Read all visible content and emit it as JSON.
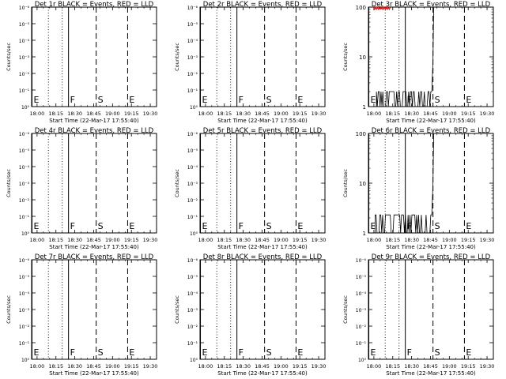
{
  "figure": {
    "tick_labels": [
      "18:00",
      "18:15",
      "18:30",
      "18:45",
      "19:00",
      "19:15",
      "19:30"
    ],
    "x_values": [
      "18:00",
      "18:15",
      "18:30",
      "18:45",
      "19:00",
      "19:15",
      "19:30"
    ],
    "y_tick_labels_pow": [
      "10⁰",
      "10⁻¹",
      "10⁻²",
      "10⁻³",
      "10⁻⁴",
      "10⁻⁵",
      "10⁻⁶"
    ],
    "y_tick_labels_lin": [
      "1",
      "10",
      "100"
    ],
    "colors": {
      "events": "#000000",
      "lld": "#ff0000",
      "axes": "#000000",
      "background": "#ffffff"
    }
  },
  "chart_data": [
    {
      "type": "line",
      "title": "Det 1r BLACK = Events, RED = LLD",
      "xlabel": "Start Time (22-Mar-17 17:55:40)",
      "ylabel": "Counts/sec",
      "y_scale": "power-ticks",
      "xlim": [
        "17:55:40",
        "19:35"
      ],
      "ylim": [
        1e-06,
        1
      ],
      "markers": [
        {
          "label": "E",
          "time": "17:56",
          "style": "solid"
        },
        {
          "label": "F",
          "time": "18:25",
          "style": "solid"
        },
        {
          "label": "S",
          "time": "18:47",
          "style": "dashed"
        },
        {
          "label": "E",
          "time": "19:12",
          "style": "dashed"
        }
      ],
      "dotted_lines": [
        "18:09",
        "18:20"
      ],
      "series": []
    },
    {
      "type": "line",
      "title": "Det 2r BLACK = Events, RED = LLD",
      "xlabel": "Start Time (22-Mar-17 17:55:40)",
      "ylabel": "Counts/sec",
      "y_scale": "power-ticks",
      "xlim": [
        "17:55:40",
        "19:35"
      ],
      "ylim": [
        1e-06,
        1
      ],
      "markers": [
        {
          "label": "E",
          "time": "17:56",
          "style": "solid"
        },
        {
          "label": "F",
          "time": "18:25",
          "style": "solid"
        },
        {
          "label": "S",
          "time": "18:47",
          "style": "dashed"
        },
        {
          "label": "E",
          "time": "19:12",
          "style": "dashed"
        }
      ],
      "dotted_lines": [
        "18:09",
        "18:20"
      ],
      "series": []
    },
    {
      "type": "line",
      "title": "Det 3r BLACK = Events, RED = LLD",
      "xlabel": "Start Time (22-Mar-17 17:55:40)",
      "ylabel": "Counts/sec",
      "y_scale": "log",
      "xlim": [
        "17:55:40",
        "19:35"
      ],
      "ylim": [
        1,
        100
      ],
      "markers": [
        {
          "label": "E",
          "time": "17:56",
          "style": "solid"
        },
        {
          "label": "F",
          "time": "18:25",
          "style": "solid"
        },
        {
          "label": "S",
          "time": "18:47",
          "style": "dashed"
        },
        {
          "label": "E",
          "time": "19:12",
          "style": "dashed"
        }
      ],
      "dotted_lines": [
        "18:09",
        "18:20"
      ],
      "series": [
        {
          "color": "#000000",
          "kind": "events",
          "t_start": "18:02",
          "t_end": "18:46",
          "low": 1,
          "high": 2,
          "spike": 100
        },
        {
          "color": "#ff0000",
          "kind": "lld",
          "t_start": "18:00",
          "t_end": "18:13",
          "level": 95
        }
      ]
    },
    {
      "type": "line",
      "title": "Det 4r BLACK = Events, RED = LLD",
      "xlabel": "Start Time (22-Mar-17 17:55:40)",
      "ylabel": "Counts/sec",
      "y_scale": "power-ticks",
      "xlim": [
        "17:55:40",
        "19:35"
      ],
      "ylim": [
        1e-06,
        1
      ],
      "markers": [
        {
          "label": "E",
          "time": "17:56",
          "style": "solid"
        },
        {
          "label": "F",
          "time": "18:25",
          "style": "solid"
        },
        {
          "label": "S",
          "time": "18:47",
          "style": "dashed"
        },
        {
          "label": "E",
          "time": "19:12",
          "style": "dashed"
        }
      ],
      "dotted_lines": [
        "18:09",
        "18:20"
      ],
      "series": []
    },
    {
      "type": "line",
      "title": "Det 5r BLACK = Events, RED = LLD",
      "xlabel": "Start Time (22-Mar-17 17:55:40)",
      "ylabel": "Counts/sec",
      "y_scale": "power-ticks",
      "xlim": [
        "17:55:40",
        "19:35"
      ],
      "ylim": [
        1e-06,
        1
      ],
      "markers": [
        {
          "label": "E",
          "time": "17:56",
          "style": "solid"
        },
        {
          "label": "F",
          "time": "18:25",
          "style": "solid"
        },
        {
          "label": "S",
          "time": "18:47",
          "style": "dashed"
        },
        {
          "label": "E",
          "time": "19:12",
          "style": "dashed"
        }
      ],
      "dotted_lines": [
        "18:09",
        "18:20"
      ],
      "series": []
    },
    {
      "type": "line",
      "title": "Det 6r BLACK = Events, RED = LLD",
      "xlabel": "Start Time (22-Mar-17 17:55:40)",
      "ylabel": "Counts/sec",
      "y_scale": "log",
      "xlim": [
        "17:55:40",
        "19:35"
      ],
      "ylim": [
        1,
        100
      ],
      "markers": [
        {
          "label": "E",
          "time": "17:56",
          "style": "solid"
        },
        {
          "label": "F",
          "time": "18:25",
          "style": "solid"
        },
        {
          "label": "S",
          "time": "18:47",
          "style": "dashed"
        },
        {
          "label": "E",
          "time": "19:12",
          "style": "dashed"
        }
      ],
      "dotted_lines": [
        "18:09",
        "18:20"
      ],
      "series": [
        {
          "color": "#000000",
          "kind": "events",
          "t_start": "18:01",
          "t_end": "18:46",
          "low": 1,
          "high": 2.3,
          "spike": 100
        }
      ]
    },
    {
      "type": "line",
      "title": "Det 7r BLACK = Events, RED = LLD",
      "xlabel": "Start Time (22-Mar-17 17:55:40)",
      "ylabel": "Counts/sec",
      "y_scale": "power-ticks",
      "xlim": [
        "17:55:40",
        "19:35"
      ],
      "ylim": [
        1e-06,
        1
      ],
      "markers": [
        {
          "label": "E",
          "time": "17:56",
          "style": "solid"
        },
        {
          "label": "F",
          "time": "18:25",
          "style": "solid"
        },
        {
          "label": "S",
          "time": "18:47",
          "style": "dashed"
        },
        {
          "label": "E",
          "time": "19:12",
          "style": "dashed"
        }
      ],
      "dotted_lines": [
        "18:09",
        "18:20"
      ],
      "series": []
    },
    {
      "type": "line",
      "title": "Det 8r BLACK = Events, RED = LLD",
      "xlabel": "Start Time (22-Mar-17 17:55:40)",
      "ylabel": "Counts/sec",
      "y_scale": "power-ticks",
      "xlim": [
        "17:55:40",
        "19:35"
      ],
      "ylim": [
        1e-06,
        1
      ],
      "markers": [
        {
          "label": "E",
          "time": "17:56",
          "style": "solid"
        },
        {
          "label": "F",
          "time": "18:25",
          "style": "solid"
        },
        {
          "label": "S",
          "time": "18:47",
          "style": "dashed"
        },
        {
          "label": "E",
          "time": "19:12",
          "style": "dashed"
        }
      ],
      "dotted_lines": [
        "18:09",
        "18:20"
      ],
      "series": []
    },
    {
      "type": "line",
      "title": "Det 9r BLACK = Events, RED = LLD",
      "xlabel": "Start Time (22-Mar-17 17:55:40)",
      "ylabel": "Counts/sec",
      "y_scale": "power-ticks",
      "xlim": [
        "17:55:40",
        "19:35"
      ],
      "ylim": [
        1e-06,
        1
      ],
      "markers": [
        {
          "label": "E",
          "time": "17:56",
          "style": "solid"
        },
        {
          "label": "F",
          "time": "18:25",
          "style": "solid"
        },
        {
          "label": "S",
          "time": "18:47",
          "style": "dashed"
        },
        {
          "label": "E",
          "time": "19:12",
          "style": "dashed"
        }
      ],
      "dotted_lines": [
        "18:09",
        "18:20"
      ],
      "series": []
    }
  ]
}
